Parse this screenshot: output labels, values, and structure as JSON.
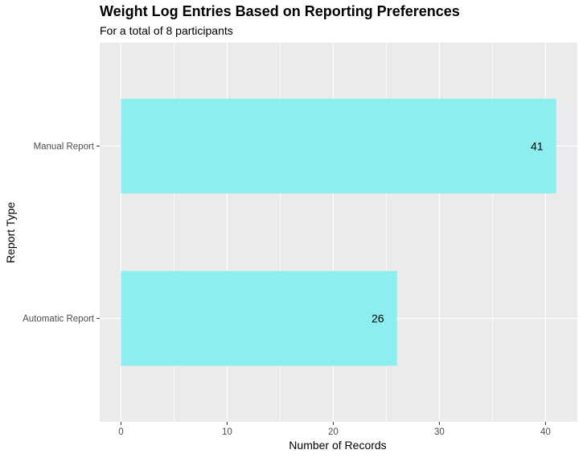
{
  "chart_data": {
    "type": "bar",
    "orientation": "horizontal",
    "title": "Weight Log Entries Based on Reporting Preferences",
    "subtitle": "For a total of 8 participants",
    "xlabel": "Number of Records",
    "ylabel": "Report Type",
    "categories": [
      "Automatic Report",
      "Manual Report"
    ],
    "values": [
      26,
      41
    ],
    "xlim": [
      -2,
      43
    ],
    "x_ticks": [
      0,
      10,
      20,
      30,
      40
    ],
    "grid": true,
    "bar_color": "#8CEEEE",
    "panel_color": "#EBEBEB",
    "grid_color": "#FFFFFF"
  }
}
